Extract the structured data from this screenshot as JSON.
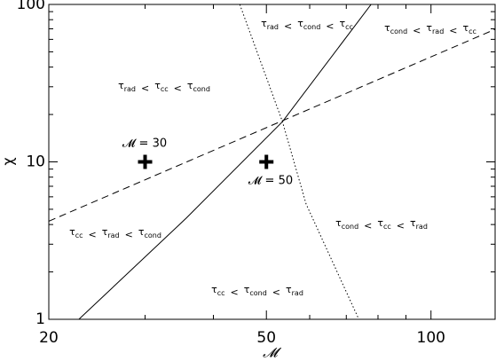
{
  "chart_data": {
    "type": "line",
    "xlabel": "𝓜",
    "ylabel": "χ",
    "xlog": true,
    "ylog": true,
    "xlim": [
      20,
      131
    ],
    "ylim": [
      1,
      100
    ],
    "xticks": [
      20,
      50,
      100
    ],
    "yticks": [
      1,
      10,
      100
    ],
    "xminorticks": [
      30,
      40,
      60,
      70,
      80,
      90
    ],
    "yminorticks": [
      2,
      3,
      4,
      5,
      6,
      7,
      8,
      9,
      20,
      30,
      40,
      50,
      60,
      70,
      80,
      90
    ],
    "color": "#000000",
    "series": [
      {
        "style": "solid",
        "x": [
          22.7,
          35.7,
          53.5,
          77.7
        ],
        "values": [
          1,
          4.4,
          18.0,
          100
        ]
      },
      {
        "style": "dashed",
        "x": [
          20,
          131
        ],
        "values": [
          4.2,
          69.5
        ]
      },
      {
        "style": "dotted",
        "x": [
          44.7,
          53.5,
          59.1,
          73.8
        ],
        "values": [
          100,
          18.0,
          5.4,
          1
        ]
      }
    ],
    "markers": [
      {
        "x": 30,
        "y": 10,
        "label": "𝓜 = 30"
      },
      {
        "x": 50,
        "y": 10,
        "label": "𝓜 = 50"
      }
    ],
    "symbol": "τ",
    "relation": "<",
    "annotations": [
      [
        "rad",
        "cond",
        "cc"
      ],
      [
        "cond",
        "rad",
        "cc"
      ],
      [
        "rad",
        "cc",
        "cond"
      ],
      [
        "cond",
        "cc",
        "rad"
      ],
      [
        "cc",
        "rad",
        "cond"
      ],
      [
        "cc",
        "cond",
        "rad"
      ]
    ]
  }
}
